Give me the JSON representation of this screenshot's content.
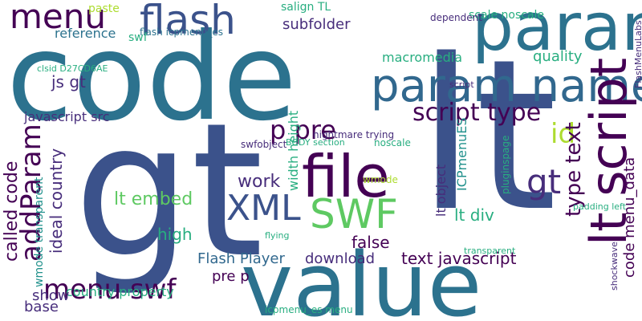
{
  "words": [
    "code",
    "gt",
    "lt",
    "value",
    "param",
    "param name",
    "flash",
    "file",
    "lt script",
    "menu",
    "XML",
    "SWF",
    "script type",
    "p pre",
    "gt",
    "addParam",
    "id",
    "lt embed",
    "type text",
    "menu swf",
    "text javascript",
    "called code",
    "ideal country",
    "work",
    "high",
    "lt div",
    "false",
    "Flash Player",
    "download",
    "country property",
    "code menu_data",
    "show",
    "base",
    "pre p",
    "js gt",
    "macromedia",
    "quality",
    "subfolder",
    "reference",
    "javascript src",
    "width height",
    "lt object",
    "ICPmenuES",
    "wmode transparent",
    "paste",
    "scale noscale",
    "salign TL",
    "swf",
    "flash icpmenu_es",
    "dependent",
    "icpmenu_es menu",
    "nightmare trying",
    "swfobject",
    "noscale",
    "wmode",
    "pluginspage",
    "BODY section",
    "transparent",
    "padding left",
    "flying",
    "FlashMenuLabs",
    "shockwave",
    "clsid D27CD6AE",
    "script"
  ]
}
